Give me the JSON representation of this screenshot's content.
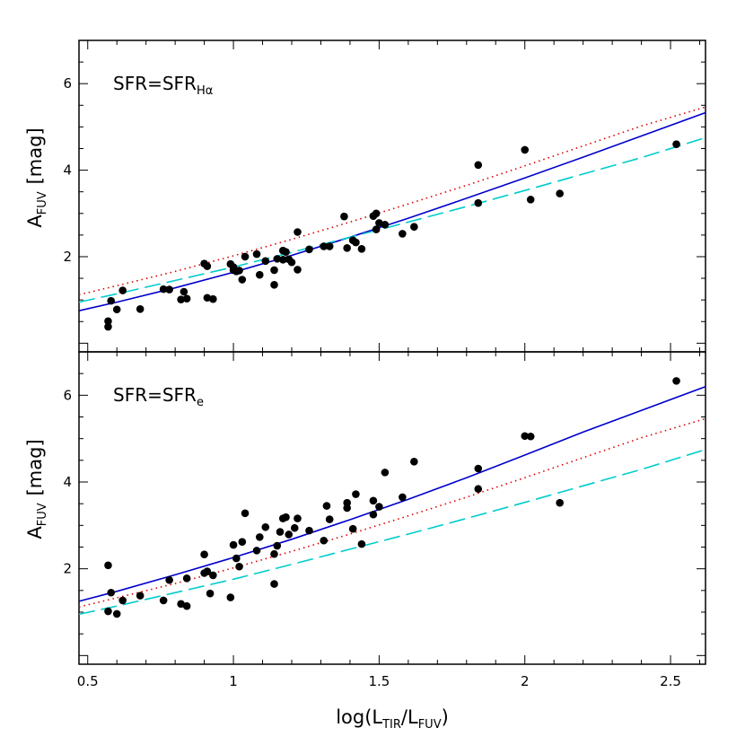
{
  "chart_data": [
    {
      "type": "scatter",
      "panel_label": {
        "main": "SFR=SFR",
        "sub": "Hα"
      },
      "xlabel": {
        "pre": "log(L",
        "sub1": "TIR",
        "mid": "/L",
        "sub2": "FUV",
        "post": ")"
      },
      "ylabel": {
        "main": "A",
        "sub": "FUV",
        "unit": "[mag]"
      },
      "xlim": [
        0.47,
        2.62
      ],
      "ylim": [
        -0.2,
        7.0
      ],
      "x_ticks": [
        "0.5",
        "1",
        "1.5",
        "2",
        "2.5"
      ],
      "y_ticks": [
        "2",
        "4",
        "6"
      ],
      "grid": false,
      "legend": "none",
      "lines": [
        {
          "style": "solid",
          "color": "#0000cc",
          "x": [
            0.47,
            0.6,
            0.8,
            1.0,
            1.2,
            1.4,
            1.6,
            1.8,
            2.0,
            2.2,
            2.4,
            2.62
          ],
          "y": [
            0.75,
            0.95,
            1.28,
            1.64,
            2.03,
            2.45,
            2.89,
            3.35,
            3.82,
            4.3,
            4.79,
            5.33
          ]
        },
        {
          "style": "dotted",
          "color": "#dd0000",
          "x": [
            0.47,
            0.6,
            0.8,
            1.0,
            1.2,
            1.4,
            1.6,
            1.8,
            2.0,
            2.2,
            2.4,
            2.62
          ],
          "y": [
            1.12,
            1.33,
            1.66,
            2.02,
            2.4,
            2.8,
            3.22,
            3.65,
            4.1,
            4.56,
            5.02,
            5.46
          ]
        },
        {
          "style": "dashed",
          "color": "#00cccc",
          "x": [
            0.47,
            0.6,
            0.8,
            1.0,
            1.2,
            1.4,
            1.6,
            1.8,
            2.0,
            2.2,
            2.4,
            2.62
          ],
          "y": [
            0.95,
            1.14,
            1.45,
            1.76,
            2.1,
            2.45,
            2.8,
            3.16,
            3.53,
            3.91,
            4.29,
            4.75
          ]
        }
      ],
      "points": {
        "x": [
          0.57,
          0.57,
          0.58,
          0.6,
          0.62,
          0.68,
          0.76,
          0.78,
          0.82,
          0.83,
          0.84,
          0.9,
          0.91,
          0.91,
          0.93,
          0.99,
          1.0,
          1.0,
          1.01,
          1.02,
          1.03,
          1.04,
          1.08,
          1.09,
          1.11,
          1.14,
          1.14,
          1.15,
          1.17,
          1.17,
          1.18,
          1.19,
          1.2,
          1.22,
          1.22,
          1.26,
          1.31,
          1.33,
          1.38,
          1.39,
          1.41,
          1.42,
          1.44,
          1.48,
          1.49,
          1.49,
          1.5,
          1.52,
          1.58,
          1.62,
          1.84,
          1.84,
          2.0,
          2.02,
          2.12,
          2.52
        ],
        "y": [
          0.38,
          0.51,
          0.98,
          0.78,
          1.22,
          0.79,
          1.25,
          1.24,
          1.01,
          1.19,
          1.03,
          1.84,
          1.05,
          1.78,
          1.02,
          1.83,
          1.69,
          1.76,
          1.66,
          1.68,
          1.47,
          2.0,
          2.06,
          1.58,
          1.9,
          1.35,
          1.69,
          1.95,
          2.14,
          1.93,
          2.11,
          1.94,
          1.87,
          1.7,
          2.57,
          2.17,
          2.24,
          2.24,
          2.93,
          2.2,
          2.38,
          2.33,
          2.18,
          2.94,
          2.63,
          3.0,
          2.78,
          2.74,
          2.53,
          2.69,
          4.12,
          3.24,
          4.47,
          3.32,
          3.46,
          4.6
        ]
      }
    },
    {
      "type": "scatter",
      "panel_label": {
        "main": "SFR=SFR",
        "sub": "e"
      },
      "xlabel": {
        "pre": "log(L",
        "sub1": "TIR",
        "mid": "/L",
        "sub2": "FUV",
        "post": ")"
      },
      "ylabel": {
        "main": "A",
        "sub": "FUV",
        "unit": "[mag]"
      },
      "xlim": [
        0.47,
        2.62
      ],
      "ylim": [
        -0.2,
        7.0
      ],
      "x_ticks": [
        "0.5",
        "1",
        "1.5",
        "2",
        "2.5"
      ],
      "y_ticks": [
        "2",
        "4",
        "6"
      ],
      "grid": false,
      "legend": "none",
      "lines": [
        {
          "style": "solid",
          "color": "#0000cc",
          "x": [
            0.47,
            0.6,
            0.8,
            1.0,
            1.2,
            1.4,
            1.6,
            1.8,
            2.0,
            2.2,
            2.4,
            2.62
          ],
          "y": [
            1.25,
            1.48,
            1.86,
            2.26,
            2.68,
            3.13,
            3.6,
            4.1,
            4.62,
            5.15,
            5.65,
            6.2
          ]
        },
        {
          "style": "dotted",
          "color": "#dd0000",
          "x": [
            0.47,
            0.6,
            0.8,
            1.0,
            1.2,
            1.4,
            1.6,
            1.8,
            2.0,
            2.2,
            2.4,
            2.62
          ],
          "y": [
            1.12,
            1.33,
            1.66,
            2.02,
            2.4,
            2.8,
            3.22,
            3.65,
            4.1,
            4.56,
            5.02,
            5.46
          ]
        },
        {
          "style": "dashed",
          "color": "#00cccc",
          "x": [
            0.47,
            0.6,
            0.8,
            1.0,
            1.2,
            1.4,
            1.6,
            1.8,
            2.0,
            2.2,
            2.4,
            2.62
          ],
          "y": [
            0.95,
            1.14,
            1.45,
            1.76,
            2.1,
            2.45,
            2.8,
            3.16,
            3.53,
            3.91,
            4.29,
            4.75
          ]
        }
      ],
      "points": {
        "x": [
          0.57,
          0.57,
          0.58,
          0.6,
          0.62,
          0.68,
          0.76,
          0.78,
          0.82,
          0.84,
          0.84,
          0.9,
          0.9,
          0.91,
          0.92,
          0.93,
          0.99,
          1.0,
          1.01,
          1.02,
          1.03,
          1.04,
          1.08,
          1.09,
          1.11,
          1.14,
          1.14,
          1.15,
          1.16,
          1.17,
          1.18,
          1.19,
          1.21,
          1.22,
          1.26,
          1.31,
          1.32,
          1.33,
          1.39,
          1.39,
          1.41,
          1.42,
          1.44,
          1.48,
          1.48,
          1.5,
          1.52,
          1.58,
          1.62,
          1.84,
          1.84,
          2.0,
          2.02,
          2.12,
          2.52
        ],
        "y": [
          2.08,
          1.02,
          1.45,
          0.96,
          1.27,
          1.38,
          1.27,
          1.74,
          1.19,
          1.14,
          1.78,
          2.33,
          1.9,
          1.94,
          1.43,
          1.85,
          1.34,
          2.55,
          2.24,
          2.05,
          2.62,
          3.28,
          2.42,
          2.73,
          2.96,
          2.34,
          1.65,
          2.53,
          2.85,
          3.16,
          3.19,
          2.79,
          2.94,
          3.16,
          2.88,
          2.65,
          3.45,
          3.14,
          3.4,
          3.52,
          2.92,
          3.72,
          2.57,
          3.25,
          3.57,
          3.43,
          4.22,
          3.65,
          4.47,
          3.84,
          4.31,
          5.06,
          5.05,
          3.52,
          6.33
        ]
      }
    }
  ]
}
